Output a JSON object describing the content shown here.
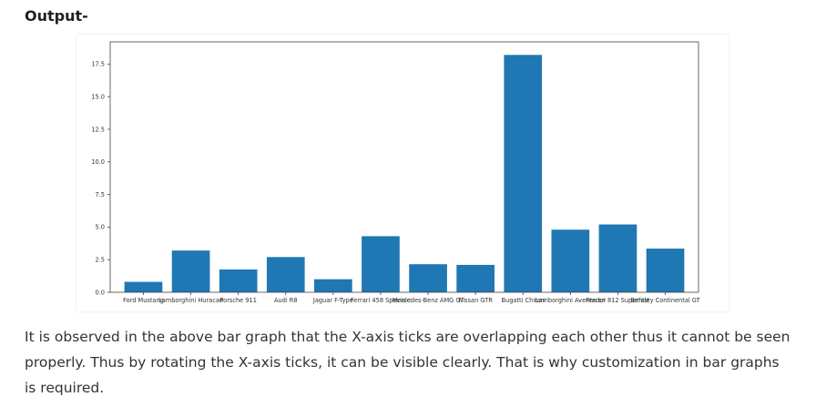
{
  "heading": "Output-",
  "paragraph": "It is observed in the above bar graph that the X-axis ticks are overlapping each other thus it cannot be seen properly. Thus by rotating the X-axis ticks, it can be visible clearly. That is why customization in bar graphs is required.",
  "chart_data": {
    "type": "bar",
    "title": "",
    "xlabel": "",
    "ylabel": "",
    "ylim": [
      0,
      19.2
    ],
    "yticks": [
      0.0,
      2.5,
      5.0,
      7.5,
      10.0,
      12.5,
      15.0,
      17.5
    ],
    "ytick_labels": [
      "0.0",
      "2.5",
      "5.0",
      "7.5",
      "10.0",
      "12.5",
      "15.0",
      "17.5"
    ],
    "categories": [
      "Ford Mustang",
      "Lamborghini Huracan",
      "Porsche 911",
      "Audi R8",
      "Jaguar F-Type",
      "Ferrari 458 Speciale",
      "Mercedes-Benz AMG GT",
      "Nissan GTR",
      "Bugatti Chiron",
      "Lamborghini Aventador",
      "Ferrari 812 Superfast",
      "Bentley Continental GT"
    ],
    "values": [
      0.8,
      3.2,
      1.75,
      2.7,
      1.0,
      4.3,
      2.15,
      2.1,
      18.2,
      4.8,
      5.2,
      3.35
    ],
    "bar_color": "#1f77b4",
    "grid": false,
    "legend": "none"
  }
}
